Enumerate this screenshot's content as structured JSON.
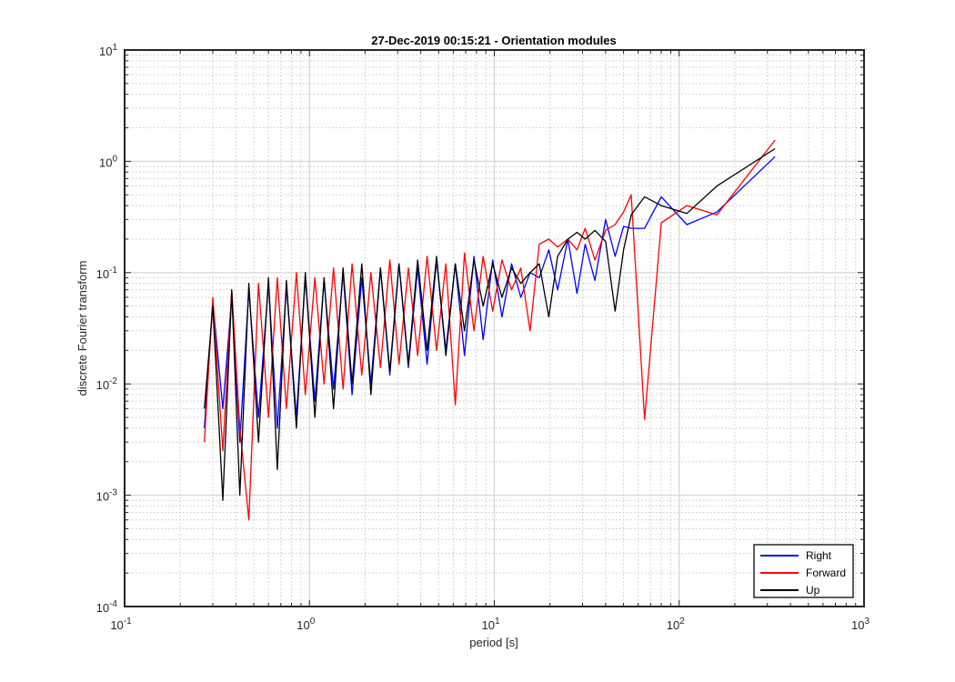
{
  "chart_data": {
    "type": "line",
    "title": "27-Dec-2019 00:15:21 - Orientation modules",
    "xlabel": "period [s]",
    "ylabel": "discrete Fourier transform",
    "xscale": "log",
    "yscale": "log",
    "xlim": [
      0.1,
      1000
    ],
    "ylim": [
      0.0001,
      10
    ],
    "grid": true,
    "minor_grid": true,
    "legend_position": "bottom-right",
    "x_ticks": [
      {
        "base": "10",
        "exp": "-1"
      },
      {
        "base": "10",
        "exp": "0"
      },
      {
        "base": "10",
        "exp": "1"
      },
      {
        "base": "10",
        "exp": "2"
      },
      {
        "base": "10",
        "exp": "3"
      }
    ],
    "y_ticks": [
      {
        "base": "10",
        "exp": "-4"
      },
      {
        "base": "10",
        "exp": "-3"
      },
      {
        "base": "10",
        "exp": "-2"
      },
      {
        "base": "10",
        "exp": "-1"
      },
      {
        "base": "10",
        "exp": "0"
      },
      {
        "base": "10",
        "exp": "1"
      }
    ],
    "series": [
      {
        "name": "Right",
        "color": "#0000ff",
        "x": [
          0.27,
          0.3,
          0.34,
          0.38,
          0.42,
          0.47,
          0.53,
          0.6,
          0.67,
          0.75,
          0.85,
          0.95,
          1.07,
          1.2,
          1.35,
          1.52,
          1.7,
          1.92,
          2.15,
          2.42,
          2.72,
          3.05,
          3.43,
          3.85,
          4.33,
          4.87,
          5.47,
          6.15,
          6.9,
          7.76,
          8.7,
          9.8,
          11,
          12.4,
          13.9,
          15.6,
          17.5,
          19.7,
          22,
          25,
          28,
          31,
          35,
          40,
          45,
          50,
          55,
          65,
          80,
          110,
          160,
          330
        ],
        "y": [
          0.004,
          0.055,
          0.006,
          0.06,
          0.003,
          0.07,
          0.005,
          0.08,
          0.004,
          0.075,
          0.005,
          0.09,
          0.007,
          0.085,
          0.009,
          0.1,
          0.008,
          0.09,
          0.01,
          0.11,
          0.012,
          0.12,
          0.014,
          0.11,
          0.015,
          0.13,
          0.02,
          0.12,
          0.018,
          0.14,
          0.025,
          0.13,
          0.04,
          0.12,
          0.06,
          0.1,
          0.09,
          0.16,
          0.07,
          0.2,
          0.065,
          0.18,
          0.085,
          0.3,
          0.14,
          0.26,
          0.25,
          0.25,
          0.48,
          0.27,
          0.35,
          1.1
        ]
      },
      {
        "name": "Forward",
        "color": "#ff0000",
        "x": [
          0.27,
          0.3,
          0.34,
          0.38,
          0.42,
          0.47,
          0.53,
          0.6,
          0.67,
          0.75,
          0.85,
          0.95,
          1.07,
          1.2,
          1.35,
          1.52,
          1.7,
          1.92,
          2.15,
          2.42,
          2.72,
          3.05,
          3.43,
          3.85,
          4.33,
          4.87,
          5.47,
          6.15,
          6.9,
          7.76,
          8.7,
          9.8,
          11,
          12.4,
          13.9,
          15.6,
          17.5,
          19.7,
          22,
          25,
          28,
          31,
          35,
          40,
          45,
          50,
          55,
          65,
          80,
          110,
          160,
          330
        ],
        "y": [
          0.003,
          0.06,
          0.0025,
          0.07,
          0.004,
          0.0006,
          0.08,
          0.005,
          0.09,
          0.006,
          0.1,
          0.008,
          0.09,
          0.01,
          0.11,
          0.009,
          0.12,
          0.012,
          0.1,
          0.014,
          0.13,
          0.015,
          0.11,
          0.018,
          0.14,
          0.02,
          0.12,
          0.0065,
          0.15,
          0.03,
          0.14,
          0.045,
          0.13,
          0.07,
          0.11,
          0.03,
          0.18,
          0.2,
          0.17,
          0.2,
          0.16,
          0.25,
          0.13,
          0.24,
          0.27,
          0.35,
          0.5,
          0.0048,
          0.28,
          0.4,
          0.33,
          1.55
        ]
      },
      {
        "name": "Up",
        "color": "#000000",
        "x": [
          0.27,
          0.3,
          0.34,
          0.38,
          0.42,
          0.47,
          0.53,
          0.6,
          0.67,
          0.75,
          0.85,
          0.95,
          1.07,
          1.2,
          1.35,
          1.52,
          1.7,
          1.92,
          2.15,
          2.42,
          2.72,
          3.05,
          3.43,
          3.85,
          4.33,
          4.87,
          5.47,
          6.15,
          6.9,
          7.76,
          8.7,
          9.8,
          11,
          12.4,
          13.9,
          15.6,
          17.5,
          19.7,
          22,
          25,
          28,
          31,
          35,
          40,
          45,
          50,
          55,
          65,
          80,
          110,
          160,
          330
        ],
        "y": [
          0.006,
          0.05,
          0.0009,
          0.07,
          0.001,
          0.08,
          0.003,
          0.09,
          0.0017,
          0.085,
          0.004,
          0.1,
          0.005,
          0.09,
          0.006,
          0.11,
          0.01,
          0.12,
          0.008,
          0.11,
          0.013,
          0.12,
          0.015,
          0.13,
          0.02,
          0.14,
          0.018,
          0.12,
          0.03,
          0.13,
          0.05,
          0.12,
          0.06,
          0.11,
          0.08,
          0.1,
          0.12,
          0.04,
          0.14,
          0.2,
          0.23,
          0.2,
          0.24,
          0.19,
          0.045,
          0.16,
          0.33,
          0.48,
          0.4,
          0.34,
          0.6,
          1.3
        ]
      }
    ]
  }
}
